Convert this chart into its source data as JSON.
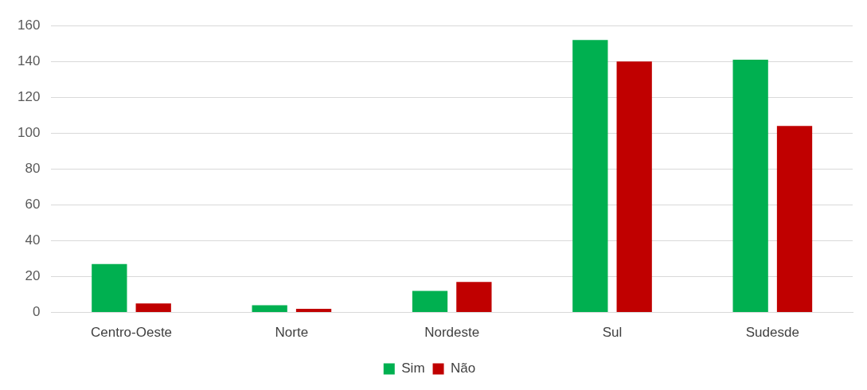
{
  "chart_data": {
    "type": "bar",
    "categories": [
      "Centro-Oeste",
      "Norte",
      "Nordeste",
      "Sul",
      "Sudesde"
    ],
    "series": [
      {
        "name": "Sim",
        "color": "#00b050",
        "values": [
          27,
          4,
          12,
          152,
          141
        ]
      },
      {
        "name": "Não",
        "color": "#c00000",
        "values": [
          5,
          2,
          17,
          140,
          104
        ]
      }
    ],
    "ylim": [
      0,
      160
    ],
    "yticks": [
      0,
      20,
      40,
      60,
      80,
      100,
      120,
      140,
      160
    ],
    "grid": "y",
    "legend": "bottom"
  }
}
